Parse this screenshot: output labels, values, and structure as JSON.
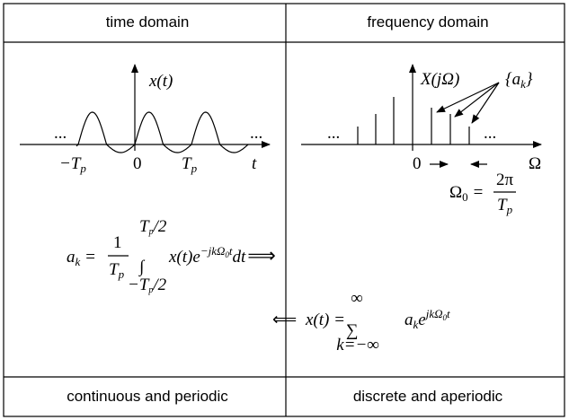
{
  "header": {
    "left": "time domain",
    "right": "frequency domain"
  },
  "footer": {
    "left": "continuous and periodic",
    "right": "discrete and aperiodic"
  },
  "time_plot": {
    "y_label": "x(t)",
    "ellipsis": "...",
    "minus_tp": {
      "main": "−T",
      "sub": "p"
    },
    "zero": "0",
    "tp": {
      "main": "T",
      "sub": "p"
    },
    "axis_label": "t"
  },
  "freq_plot": {
    "y_label": "X(jΩ)",
    "coeff": {
      "pre": "{a",
      "sub": "k",
      "post": "}"
    },
    "ellipsis_left": "...",
    "ellipsis_right": "...",
    "zero": "0",
    "axis_label": "Ω",
    "spacing": {
      "lhs": "Ω",
      "lhs_sub": "0",
      "eq": "=",
      "num": "2π",
      "den": "T",
      "den_sub": "p"
    }
  },
  "analysis_eq": {
    "lhs": "a",
    "lhs_sub": "k",
    "eq": "=",
    "num": "1",
    "den": "T",
    "den_sub": "p",
    "integral": "∫",
    "upper": "T",
    "upper_sub": "p",
    "upper_tail": "/2",
    "lower": "−T",
    "lower_sub": "p",
    "lower_tail": "/2",
    "integrand": "x(t)e",
    "exp": "−jkΩ",
    "exp_sub": "0",
    "exp_tail": "t",
    "dt": "dt",
    "arrow": "⟹"
  },
  "synthesis_eq": {
    "arrow": "⟸",
    "lhs": "x(t) =",
    "sum": "∑",
    "upper": "∞",
    "lower": "k=−∞",
    "coef": "a",
    "coef_sub": "k",
    "base": "e",
    "exp": "jkΩ",
    "exp_sub": "0",
    "exp_tail": "t"
  }
}
